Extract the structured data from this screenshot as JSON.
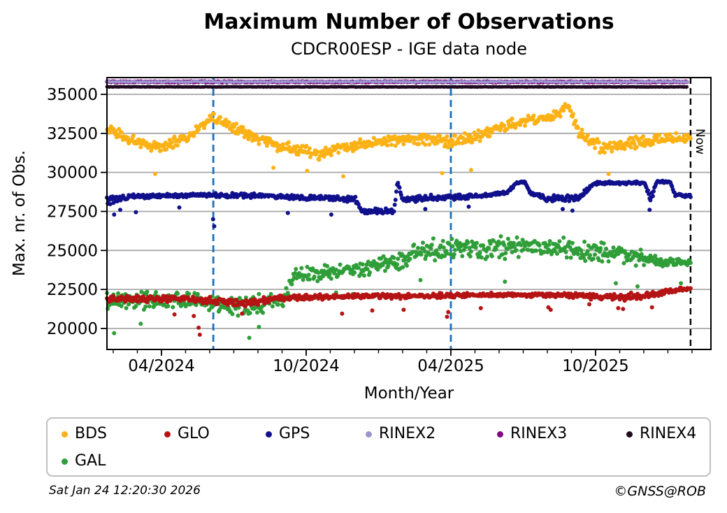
{
  "header": {
    "title": "Maximum Number of Observations",
    "subtitle": "CDCR00ESP - IGE data node"
  },
  "footer": {
    "timestamp": "Sat Jan 24 12:20:30 2026",
    "credit": "©GNSS@ROB"
  },
  "now_label": "Now",
  "legend": {
    "items": [
      {
        "label": "BDS",
        "color": "#FCB216"
      },
      {
        "label": "GLO",
        "color": "#B51414"
      },
      {
        "label": "GPS",
        "color": "#10108C"
      },
      {
        "label": "RINEX2",
        "color": "#9C96CE"
      },
      {
        "label": "RINEX3",
        "color": "#830683"
      },
      {
        "label": "RINEX4",
        "color": "#1E0A1E"
      },
      {
        "label": "GAL",
        "color": "#2F9E38"
      }
    ]
  },
  "chart_data": {
    "type": "scatter",
    "title": "Maximum Number of Observations",
    "subtitle": "CDCR00ESP - IGE data node",
    "xlabel": "Month/Year",
    "ylabel": "Max. nr. of Obs.",
    "ylim": [
      18650,
      36080
    ],
    "grid": true,
    "legend_position": "bottom",
    "axis_start": "late Jan 2024",
    "axis_end": "late Feb 2026",
    "yticks": [
      {
        "value": 20000,
        "label": "20000"
      },
      {
        "value": 22500,
        "label": "22500"
      },
      {
        "value": 25000,
        "label": "25000"
      },
      {
        "value": 27500,
        "label": "27500"
      },
      {
        "value": 30000,
        "label": "30000"
      },
      {
        "value": 32500,
        "label": "32500"
      },
      {
        "value": 35000,
        "label": "35000"
      }
    ],
    "xticks_major": [
      {
        "m": 2.26,
        "label": "04/2024"
      },
      {
        "m": 8.26,
        "label": "10/2024"
      },
      {
        "m": 14.26,
        "label": "04/2025"
      },
      {
        "m": 20.26,
        "label": "10/2025"
      }
    ],
    "xticks_minor": {
      "start_m": 0.26,
      "step": 1,
      "count": 25
    },
    "x_span_months": 25.04,
    "now_line": {
      "m": 24.2,
      "label": "Now",
      "color": "#000000"
    },
    "event_lines": {
      "color": "#1A6FBE",
      "months": [
        4.41,
        14.26
      ]
    },
    "grid_color": "#A8A8A8",
    "series": [
      {
        "name": "RINEX3",
        "color": "#830683",
        "marker_r": 3.0,
        "per_month": 31,
        "line": false,
        "trend": [
          [
            0,
            35800,
            40
          ],
          [
            24.05,
            35800,
            40
          ]
        ],
        "outliers": []
      },
      {
        "name": "RINEX2",
        "color": "#9C96CE",
        "marker_r": 2.6,
        "per_month": 8,
        "line": false,
        "trend": [
          [
            0,
            35810,
            45
          ],
          [
            24.05,
            35810,
            45
          ]
        ],
        "outliers": []
      },
      {
        "name": "RINEX4",
        "color": "#1E0A1E",
        "marker_r": 2.4,
        "per_month": 31,
        "line": false,
        "trend": [
          [
            0,
            35480,
            22
          ],
          [
            24.05,
            35480,
            22
          ]
        ],
        "outliers": []
      },
      {
        "name": "BDS",
        "color": "#FCB216",
        "marker_r": 3.0,
        "per_month": 30,
        "line": true,
        "trend": [
          [
            0,
            32900,
            450
          ],
          [
            1,
            32000,
            450
          ],
          [
            2.3,
            31600,
            450
          ],
          [
            3.4,
            32300,
            400
          ],
          [
            4.4,
            33550,
            350
          ],
          [
            5.2,
            32900,
            400
          ],
          [
            7,
            31700,
            450
          ],
          [
            8.8,
            31150,
            450
          ],
          [
            10.5,
            31800,
            420
          ],
          [
            12.5,
            32150,
            400
          ],
          [
            14.3,
            32000,
            500
          ],
          [
            15.5,
            32400,
            400
          ],
          [
            17,
            33250,
            400
          ],
          [
            18.6,
            33600,
            450
          ],
          [
            19.1,
            34300,
            300
          ],
          [
            19.6,
            32400,
            550
          ],
          [
            20.5,
            31600,
            500
          ],
          [
            22,
            31900,
            480
          ],
          [
            24.2,
            32300,
            400
          ]
        ],
        "outliers": [
          [
            2,
            29900
          ],
          [
            6.9,
            30300
          ],
          [
            8.3,
            30100
          ],
          [
            9.8,
            29750
          ],
          [
            13.9,
            29950
          ],
          [
            15.1,
            30150
          ],
          [
            20.8,
            29900
          ]
        ]
      },
      {
        "name": "GLO",
        "color": "#B51414",
        "marker_r": 3.0,
        "per_month": 30,
        "line": true,
        "trend": [
          [
            0,
            21880,
            230
          ],
          [
            3,
            21900,
            230
          ],
          [
            4.6,
            21750,
            280
          ],
          [
            5.8,
            21600,
            300
          ],
          [
            6.8,
            21900,
            250
          ],
          [
            8,
            22000,
            200
          ],
          [
            10,
            22050,
            190
          ],
          [
            12,
            22080,
            190
          ],
          [
            14,
            22100,
            180
          ],
          [
            16,
            22150,
            160
          ],
          [
            18,
            22150,
            170
          ],
          [
            19.5,
            22100,
            200
          ],
          [
            21.2,
            22000,
            280
          ],
          [
            22.3,
            22100,
            250
          ],
          [
            23.2,
            22350,
            180
          ],
          [
            24.2,
            22580,
            140
          ]
        ],
        "outliers": [
          [
            2.8,
            20900
          ],
          [
            3.6,
            20800
          ],
          [
            3.8,
            20050
          ],
          [
            3.85,
            19600
          ],
          [
            5.6,
            20950
          ],
          [
            9.75,
            20950
          ],
          [
            11,
            21150
          ],
          [
            12.3,
            21200
          ],
          [
            14.1,
            20750
          ],
          [
            14.15,
            21050
          ],
          [
            15.5,
            21300
          ],
          [
            18.3,
            21350
          ],
          [
            18.4,
            21200
          ],
          [
            20,
            21550
          ],
          [
            21.2,
            21300
          ],
          [
            21.4,
            21250
          ],
          [
            22.6,
            21350
          ]
        ]
      },
      {
        "name": "GPS",
        "color": "#10108C",
        "marker_r": 3.0,
        "per_month": 30,
        "line": true,
        "trend": [
          [
            0,
            28100,
            400
          ],
          [
            0.9,
            28450,
            160
          ],
          [
            4,
            28550,
            150
          ],
          [
            6.5,
            28500,
            150
          ],
          [
            8.5,
            28350,
            180
          ],
          [
            10.3,
            28300,
            200
          ],
          [
            10.55,
            27550,
            180
          ],
          [
            11.9,
            27500,
            180
          ],
          [
            12.05,
            29400,
            100
          ],
          [
            12.25,
            28300,
            250
          ],
          [
            13.5,
            28350,
            250
          ],
          [
            15.5,
            28500,
            180
          ],
          [
            16.6,
            28700,
            120
          ],
          [
            17,
            29350,
            80
          ],
          [
            17.35,
            29350,
            80
          ],
          [
            17.55,
            28650,
            100
          ],
          [
            18.3,
            28300,
            250
          ],
          [
            19.6,
            28400,
            250
          ],
          [
            20.2,
            29300,
            110
          ],
          [
            22.3,
            29350,
            110
          ],
          [
            22.55,
            28250,
            350
          ],
          [
            22.8,
            29400,
            90
          ],
          [
            23.35,
            29400,
            90
          ],
          [
            23.55,
            28550,
            120
          ],
          [
            24.2,
            28500,
            120
          ]
        ],
        "outliers": [
          [
            0.3,
            27300
          ],
          [
            0.55,
            27600
          ],
          [
            1.2,
            27450
          ],
          [
            3,
            27750
          ],
          [
            4.4,
            27000
          ],
          [
            4.45,
            26550
          ],
          [
            7.5,
            27400
          ],
          [
            9.3,
            27300
          ],
          [
            13.2,
            27650
          ],
          [
            15,
            27800
          ],
          [
            18.9,
            27650
          ],
          [
            19.3,
            27550
          ],
          [
            22.5,
            27600
          ]
        ]
      },
      {
        "name": "GAL",
        "color": "#2F9E38",
        "marker_r": 3.0,
        "per_month": 30,
        "line": true,
        "trend": [
          [
            0,
            21800,
            650
          ],
          [
            2,
            21800,
            650
          ],
          [
            4.5,
            21700,
            700
          ],
          [
            5.5,
            21400,
            800
          ],
          [
            6.5,
            21700,
            750
          ],
          [
            7.4,
            21900,
            700
          ],
          [
            7.7,
            23400,
            450
          ],
          [
            9,
            23600,
            600
          ],
          [
            11,
            23900,
            650
          ],
          [
            12.3,
            24300,
            650
          ],
          [
            12.8,
            25100,
            750
          ],
          [
            14,
            25100,
            800
          ],
          [
            16,
            25200,
            850
          ],
          [
            18,
            25300,
            800
          ],
          [
            19.5,
            25000,
            800
          ],
          [
            21,
            24800,
            750
          ],
          [
            22.5,
            24400,
            500
          ],
          [
            23.3,
            24200,
            350
          ],
          [
            24.2,
            24300,
            250
          ]
        ],
        "outliers": [
          [
            0.3,
            19700
          ],
          [
            1.4,
            20300
          ],
          [
            5.9,
            19400
          ],
          [
            6.3,
            20100
          ],
          [
            9.5,
            22300
          ],
          [
            10.2,
            22200
          ],
          [
            13,
            23100
          ],
          [
            16.5,
            23000
          ],
          [
            21.1,
            22900
          ],
          [
            22,
            22700
          ],
          [
            23.8,
            22900
          ]
        ]
      }
    ]
  }
}
